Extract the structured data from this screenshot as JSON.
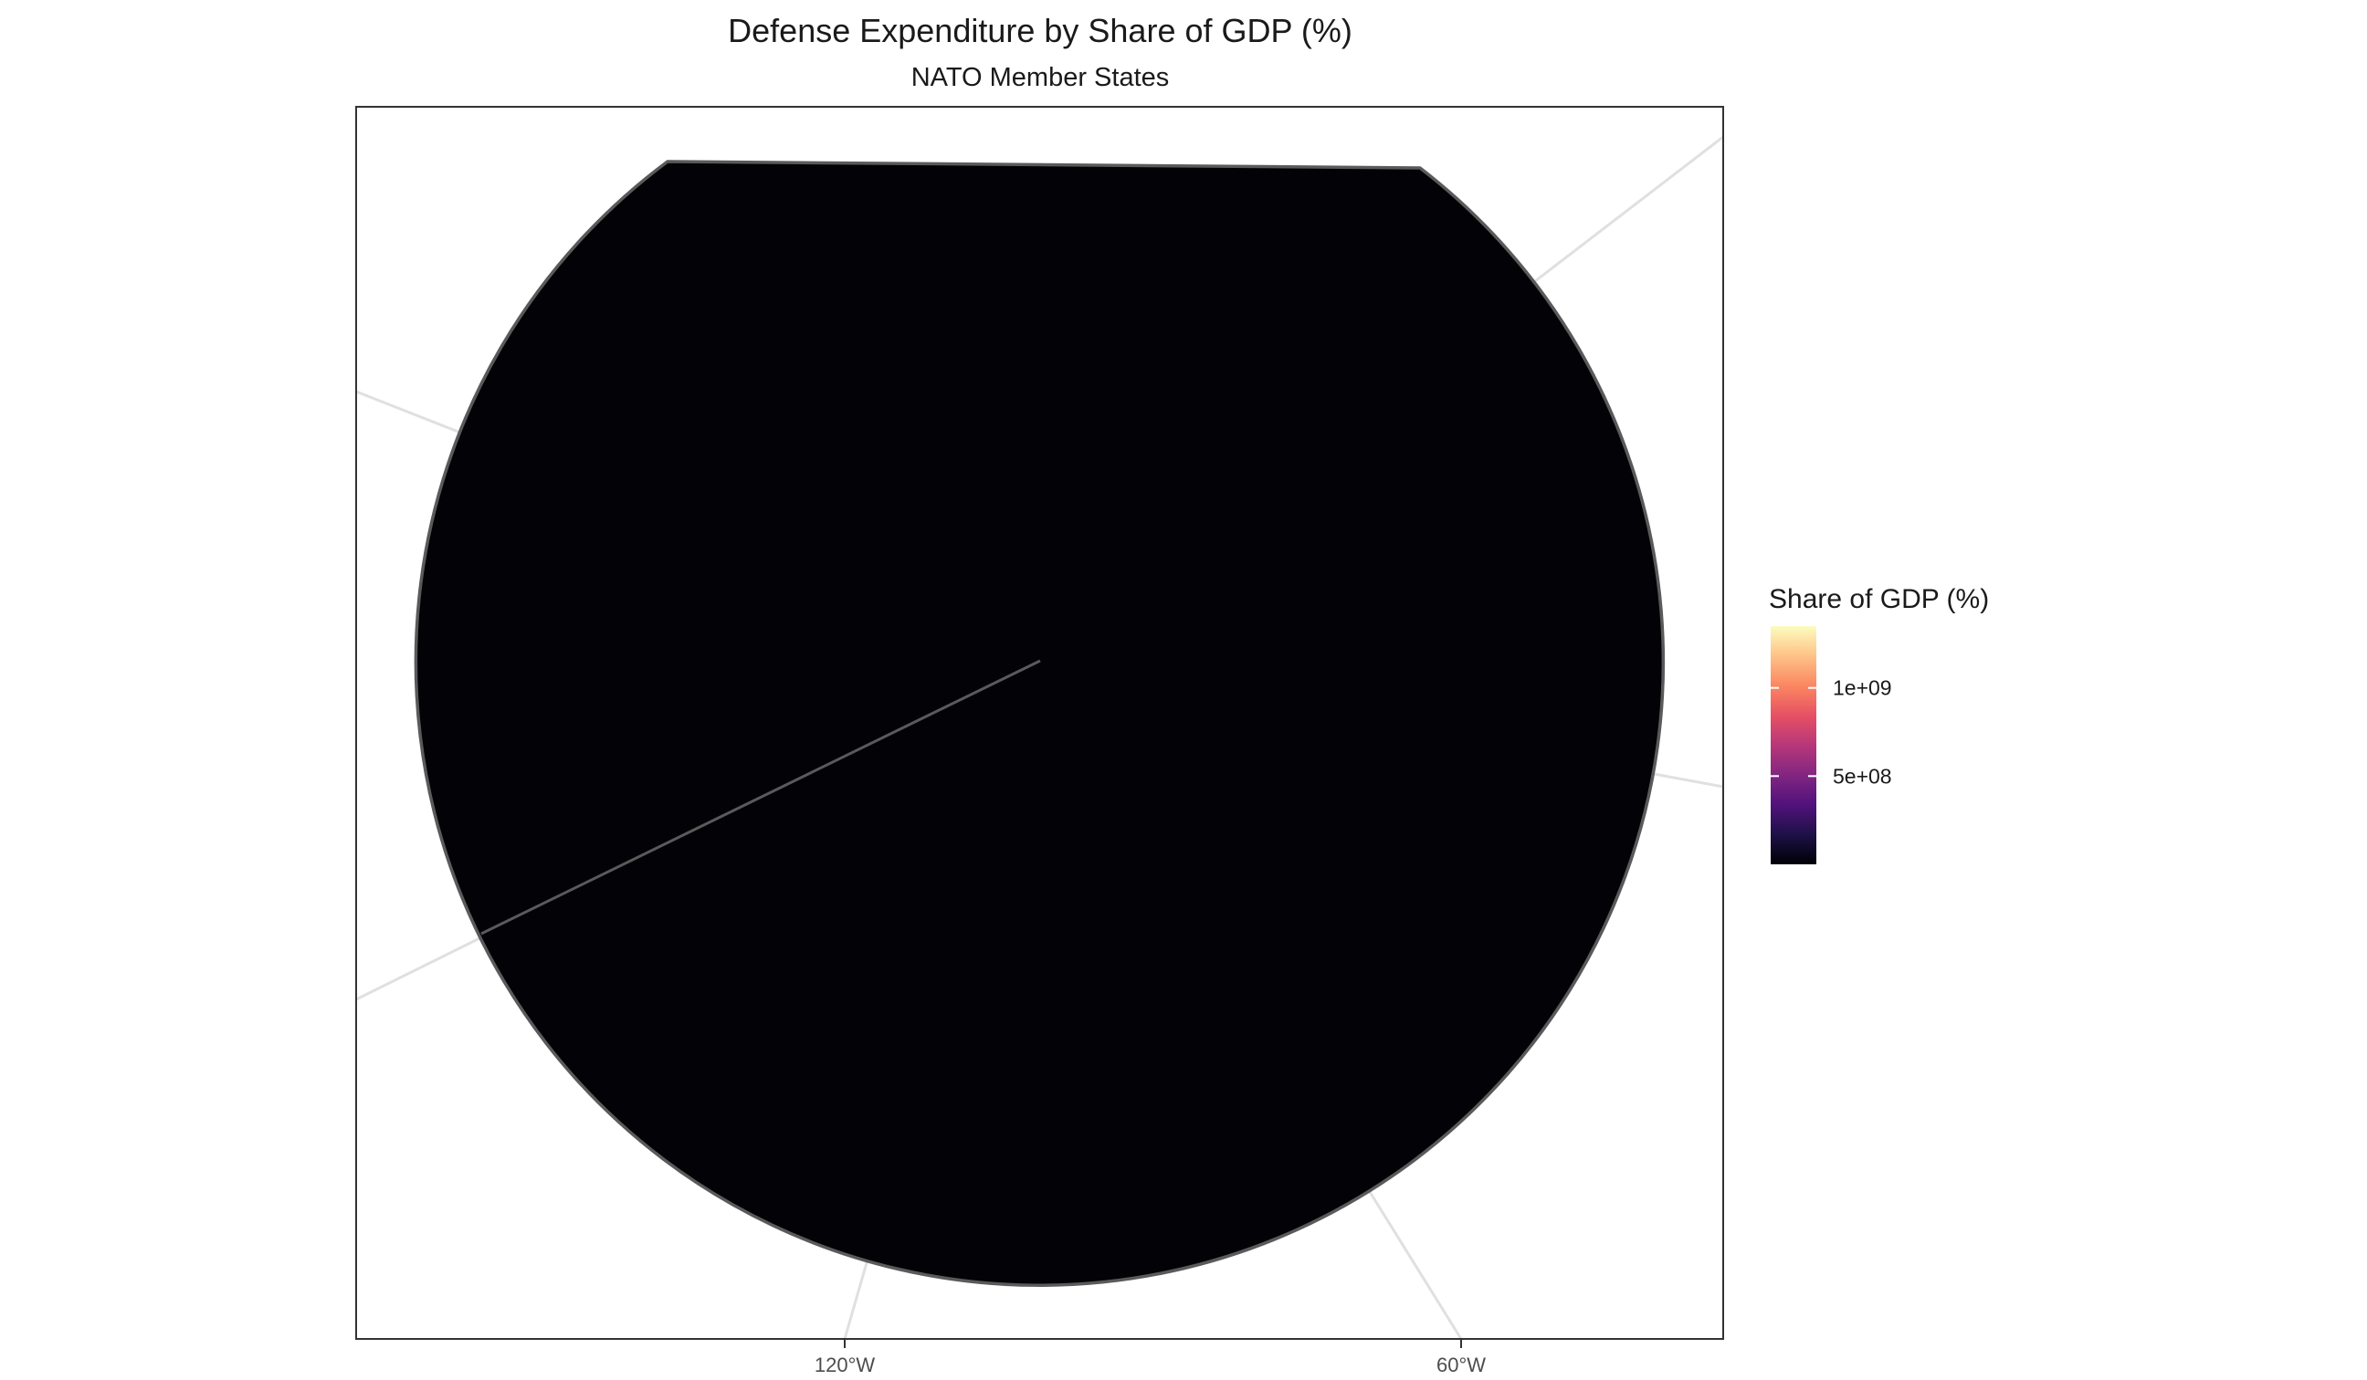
{
  "chart_data": {
    "type": "choropleth-map",
    "title": "Defense Expenditure by Share of GDP (%)",
    "subtitle": "NATO Member States",
    "projection": "polar (north-pole centered)",
    "fill_variable": "Share of GDP (%)",
    "regions": [
      {
        "fill_level": "lowest (near 0)",
        "fill_color": "#030207"
      }
    ],
    "x_axis": {
      "ticks": [
        {
          "label": "120°W",
          "lon": -120
        },
        {
          "label": "60°W",
          "lon": -60
        }
      ]
    },
    "legend": {
      "title": "Share of GDP (%)",
      "position": "right",
      "type": "continuous colorbar",
      "palette": "magma",
      "colors": [
        "#000004",
        "#1d1147",
        "#51127c",
        "#822681",
        "#b73779",
        "#e65164",
        "#fb8761",
        "#fec287",
        "#fcfdbf"
      ],
      "range": [
        0,
        1350000000
      ],
      "ticks": [
        {
          "label": "5e+08",
          "value": 500000000
        },
        {
          "label": "1e+09",
          "value": 1000000000
        }
      ]
    },
    "graticule_color": "#e0e0e0",
    "outline_color": "#5a5a5a",
    "panel_border_color": "#333333"
  }
}
